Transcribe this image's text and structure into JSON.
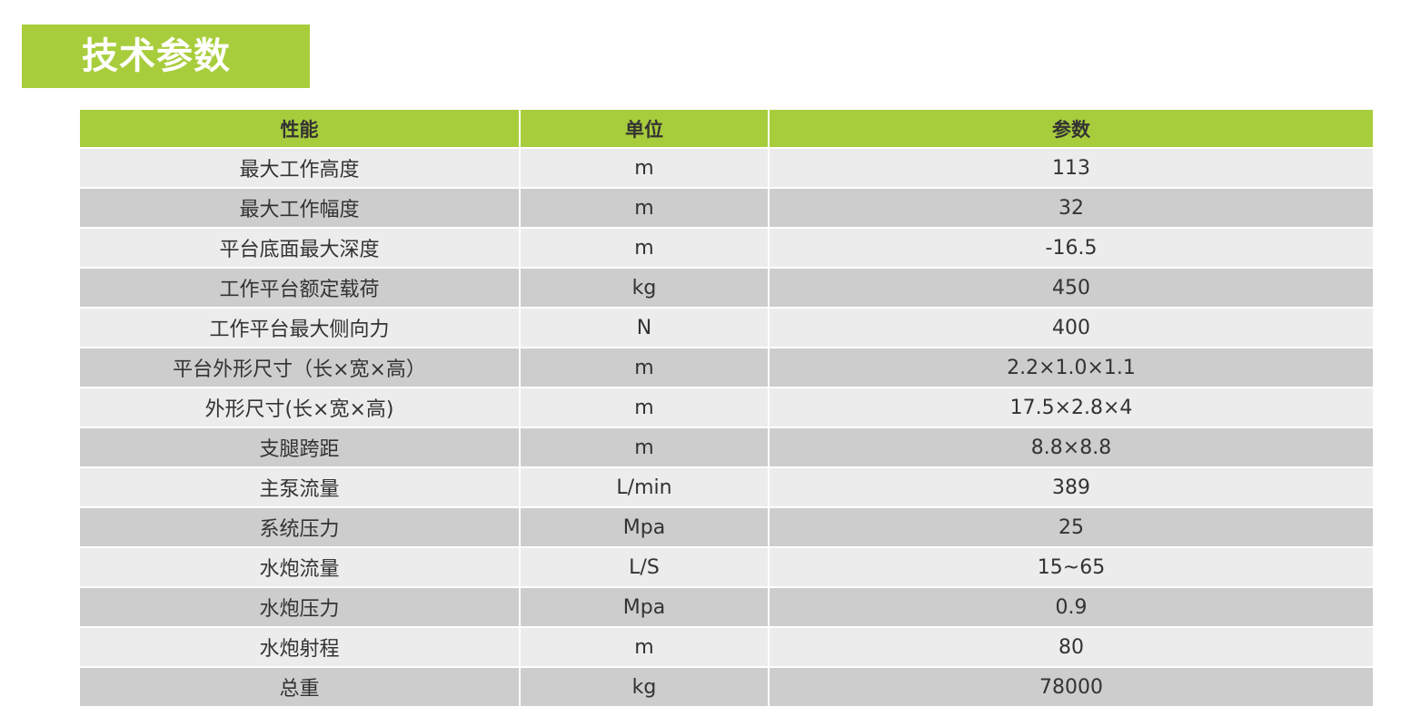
{
  "title": "技术参数",
  "colors": {
    "accent": "#a8cd3c",
    "row_light": "#ececec",
    "row_dark": "#cdcdcd"
  },
  "table": {
    "headers": [
      "性能",
      "单位",
      "参数"
    ],
    "rows": [
      [
        "最大工作高度",
        "m",
        "113"
      ],
      [
        "最大工作幅度",
        "m",
        "32"
      ],
      [
        "平台底面最大深度",
        "m",
        "-16.5"
      ],
      [
        "工作平台额定载荷",
        "kg",
        "450"
      ],
      [
        "工作平台最大侧向力",
        "N",
        "400"
      ],
      [
        "平台外形尺寸（长×宽×高）",
        "m",
        "2.2×1.0×1.1"
      ],
      [
        "外形尺寸(长×宽×高)",
        "m",
        "17.5×2.8×4"
      ],
      [
        "支腿跨距",
        "m",
        "8.8×8.8"
      ],
      [
        "主泵流量",
        "L/min",
        "389"
      ],
      [
        "系统压力",
        "Mpa",
        "25"
      ],
      [
        "水炮流量",
        "L/S",
        "15~65"
      ],
      [
        "水炮压力",
        "Mpa",
        "0.9"
      ],
      [
        "水炮射程",
        "m",
        "80"
      ],
      [
        "总重",
        "kg",
        "78000"
      ]
    ]
  }
}
